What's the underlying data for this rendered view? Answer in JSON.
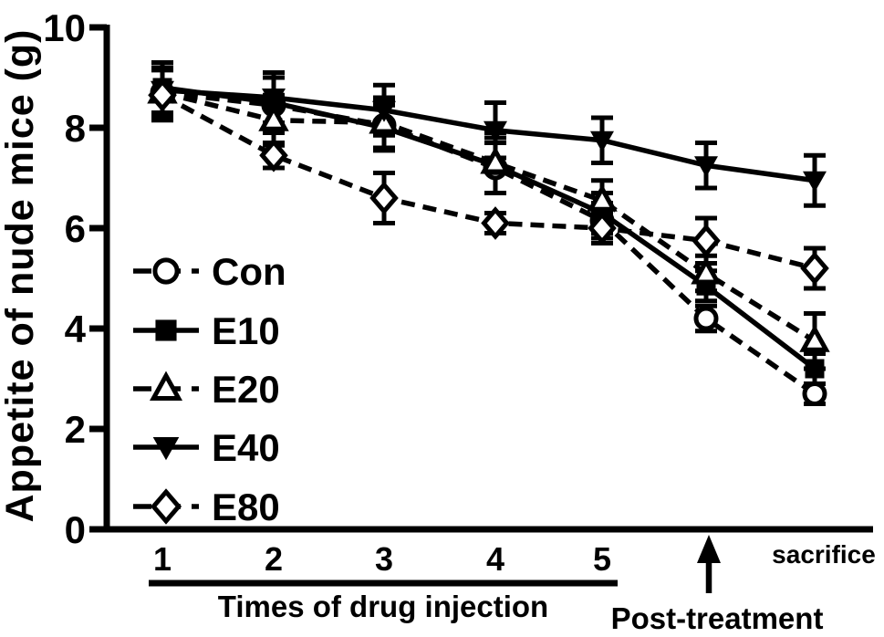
{
  "figure": {
    "ylabel": "Appetite of nude mice (g)",
    "xlabel": "Times of drug injection",
    "post_treatment_label": "Post-treatment",
    "sacrifice_label": "sacrifice",
    "ink_color": "#000000",
    "background_color": "#ffffff"
  },
  "chart_data": {
    "type": "line",
    "title": "",
    "ylabel": "Appetite of nude mice (g)",
    "xlabel": "Times of drug injection",
    "x_categories": [
      "1",
      "2",
      "3",
      "4",
      "5",
      "Post-treatment",
      "sacrifice"
    ],
    "x_tick_labels_shown": [
      "1",
      "2",
      "3",
      "4",
      "5"
    ],
    "ylim": [
      0,
      10
    ],
    "yticks": [
      0,
      2,
      4,
      6,
      8,
      10
    ],
    "grid": false,
    "error_bars": true,
    "legend_position": "inside-left",
    "annotations": [
      "Post-treatment arrow between 5 and sacrifice",
      "injection span underline beneath ticks 1-5"
    ],
    "series": [
      {
        "name": "Con",
        "marker": "open-circle",
        "line": "dashed",
        "values": [
          8.7,
          8.45,
          8.05,
          7.2,
          6.15,
          4.2,
          2.7
        ],
        "errors": [
          0.5,
          0.55,
          0.5,
          0.5,
          0.35,
          0.25,
          0.2
        ]
      },
      {
        "name": "E10",
        "marker": "filled-square",
        "line": "solid",
        "values": [
          8.8,
          8.5,
          8.0,
          7.25,
          6.3,
          4.85,
          3.2
        ],
        "errors": [
          0.5,
          0.6,
          0.45,
          0.55,
          0.4,
          0.3,
          0.3
        ]
      },
      {
        "name": "E20",
        "marker": "open-triangle-up",
        "line": "dashed",
        "values": [
          8.7,
          8.15,
          8.1,
          7.3,
          6.55,
          5.1,
          3.75
        ],
        "errors": [
          0.45,
          0.5,
          0.5,
          0.6,
          0.4,
          0.35,
          0.55
        ]
      },
      {
        "name": "E40",
        "marker": "filled-triangle-down",
        "line": "solid",
        "values": [
          8.75,
          8.6,
          8.35,
          7.95,
          7.75,
          7.25,
          6.95
        ],
        "errors": [
          0.55,
          0.5,
          0.5,
          0.55,
          0.45,
          0.45,
          0.5
        ]
      },
      {
        "name": "E80",
        "marker": "open-diamond",
        "line": "dashed",
        "values": [
          8.65,
          7.45,
          6.6,
          6.1,
          6.0,
          5.75,
          5.2
        ],
        "errors": [
          0.5,
          0.25,
          0.5,
          0.2,
          0.3,
          0.45,
          0.4
        ]
      }
    ]
  }
}
